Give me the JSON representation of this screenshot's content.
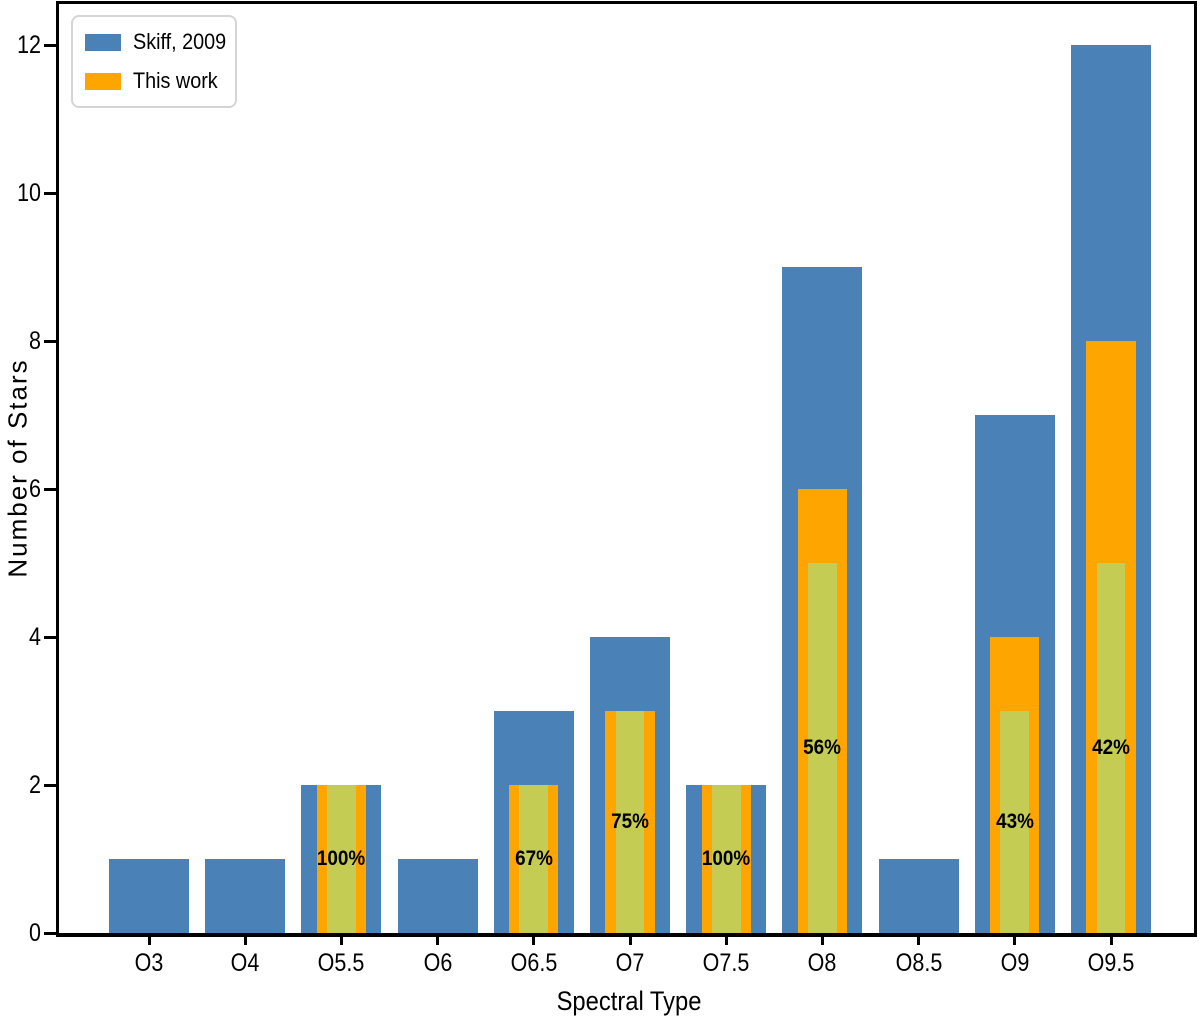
{
  "chart_data": {
    "type": "bar",
    "title": "",
    "xlabel": "Spectral Type",
    "ylabel": "Number of Stars",
    "categories": [
      "O3",
      "O4",
      "O5.5",
      "O6",
      "O6.5",
      "O7",
      "O7.5",
      "O8",
      "O8.5",
      "O9",
      "O9.5"
    ],
    "series": [
      {
        "name": "Skiff, 2009",
        "color": "#4a81b6",
        "bar_width_frac": 0.83,
        "in_legend": true,
        "values": [
          1,
          1,
          2,
          1,
          3,
          4,
          2,
          9,
          1,
          7,
          12
        ]
      },
      {
        "name": "This work",
        "color": "#ffa500",
        "bar_width_frac": 0.51,
        "in_legend": true,
        "values": [
          0,
          0,
          2,
          0,
          2,
          3,
          2,
          6,
          0,
          4,
          8
        ]
      },
      {
        "name": "inner-highlight",
        "color": "#c5cc53",
        "bar_width_frac": 0.3,
        "in_legend": false,
        "values": [
          0,
          0,
          2,
          0,
          2,
          3,
          2,
          5,
          0,
          3,
          5
        ]
      }
    ],
    "percent_labels": [
      "",
      "",
      "100%",
      "",
      "67%",
      "75%",
      "100%",
      "56%",
      "",
      "43%",
      "42%"
    ],
    "yticks": [
      0,
      2,
      4,
      6,
      8,
      10,
      12
    ],
    "ylim": [
      0,
      12.55
    ],
    "grid": false,
    "legend_position": "upper left",
    "annotation_note": "percent label = inner-highlight value / Skiff 2009 value, centered at half the inner bar height"
  }
}
